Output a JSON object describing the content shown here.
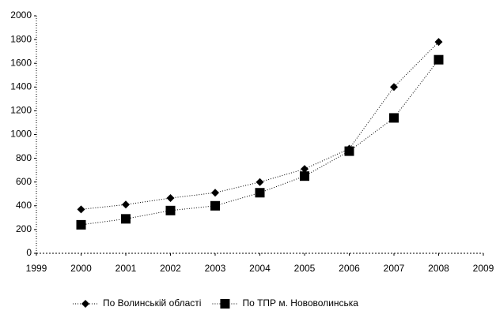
{
  "chart_data": {
    "type": "scatter",
    "x": [
      2000,
      2001,
      2002,
      2003,
      2004,
      2005,
      2006,
      2007,
      2008
    ],
    "series": [
      {
        "name": "По Волинській області",
        "color": "#000000",
        "marker": "diamond",
        "values": [
          370,
          410,
          465,
          510,
          600,
          710,
          880,
          1400,
          1780
        ]
      },
      {
        "name": "По ТПР м. Нововолинська",
        "color": "#000000",
        "marker": "square",
        "values": [
          240,
          290,
          360,
          400,
          510,
          650,
          860,
          1140,
          1630
        ]
      }
    ],
    "xlim": [
      1999,
      2009
    ],
    "xticks": [
      1999,
      2000,
      2001,
      2002,
      2003,
      2004,
      2005,
      2006,
      2007,
      2008,
      2009
    ],
    "ylim": [
      0,
      2000
    ],
    "yticks": [
      0,
      200,
      400,
      600,
      800,
      1000,
      1200,
      1400,
      1600,
      1800,
      2000
    ],
    "trend_lines": true,
    "legend": "bottom"
  }
}
